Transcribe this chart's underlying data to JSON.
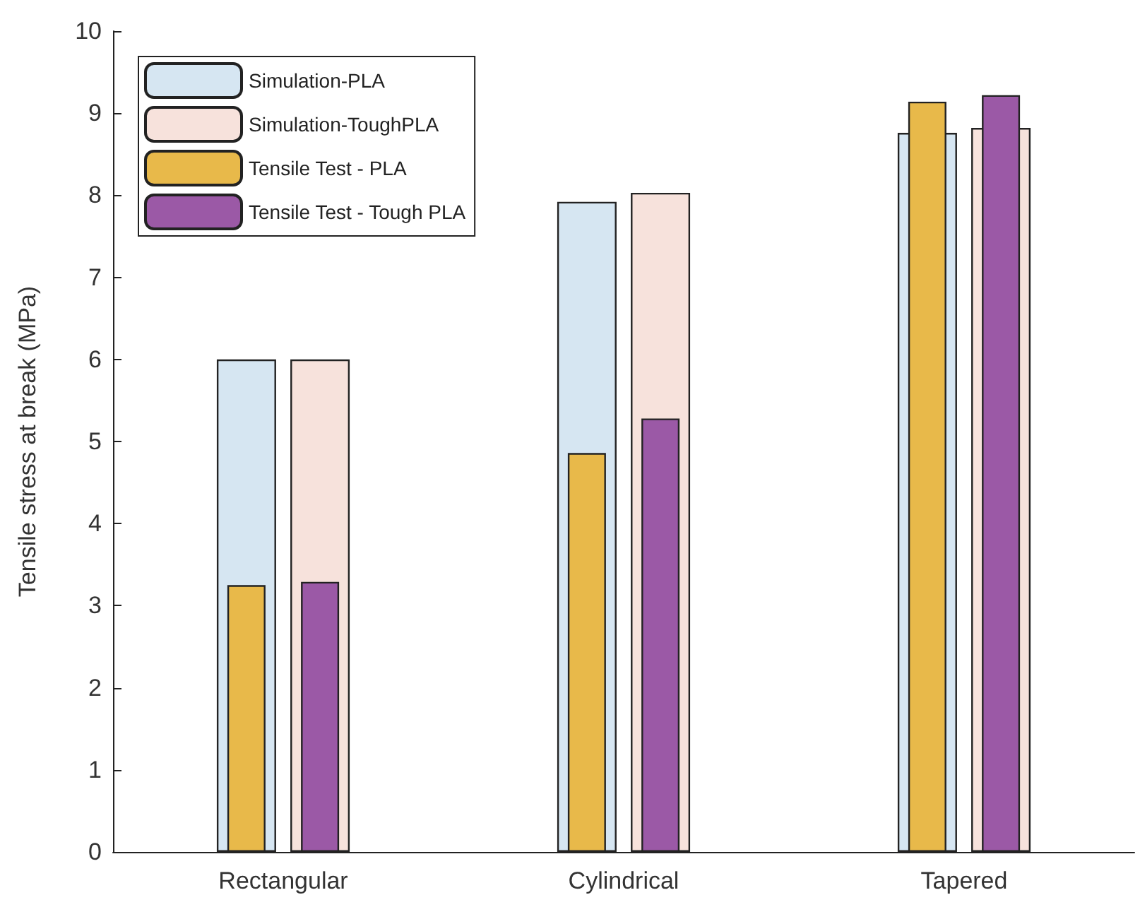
{
  "chart_data": {
    "type": "bar",
    "ylabel": "Tensile stress at break (MPa)",
    "categories": [
      "Rectangular",
      "Cylindrical",
      "Tapered"
    ],
    "series": [
      {
        "name": "Simulation-PLA",
        "color": "#d6e6f2",
        "values": [
          6,
          7.92,
          8.76
        ]
      },
      {
        "name": "Simulation-ToughPLA",
        "color": "#f7e2dc",
        "values": [
          6,
          8.03,
          8.82
        ]
      },
      {
        "name": "Tensile Test - PLA",
        "color": "#e8b94a",
        "values": [
          3.25,
          4.86,
          9.14
        ]
      },
      {
        "name": "Tensile Test - Tough PLA",
        "color": "#9b59a6",
        "values": [
          3.29,
          5.28,
          9.22
        ]
      }
    ],
    "ylim": [
      0,
      10
    ],
    "yticks": [
      0,
      1,
      2,
      3,
      4,
      5,
      6,
      7,
      8,
      9,
      10
    ],
    "grid": false,
    "legend": "top left"
  }
}
